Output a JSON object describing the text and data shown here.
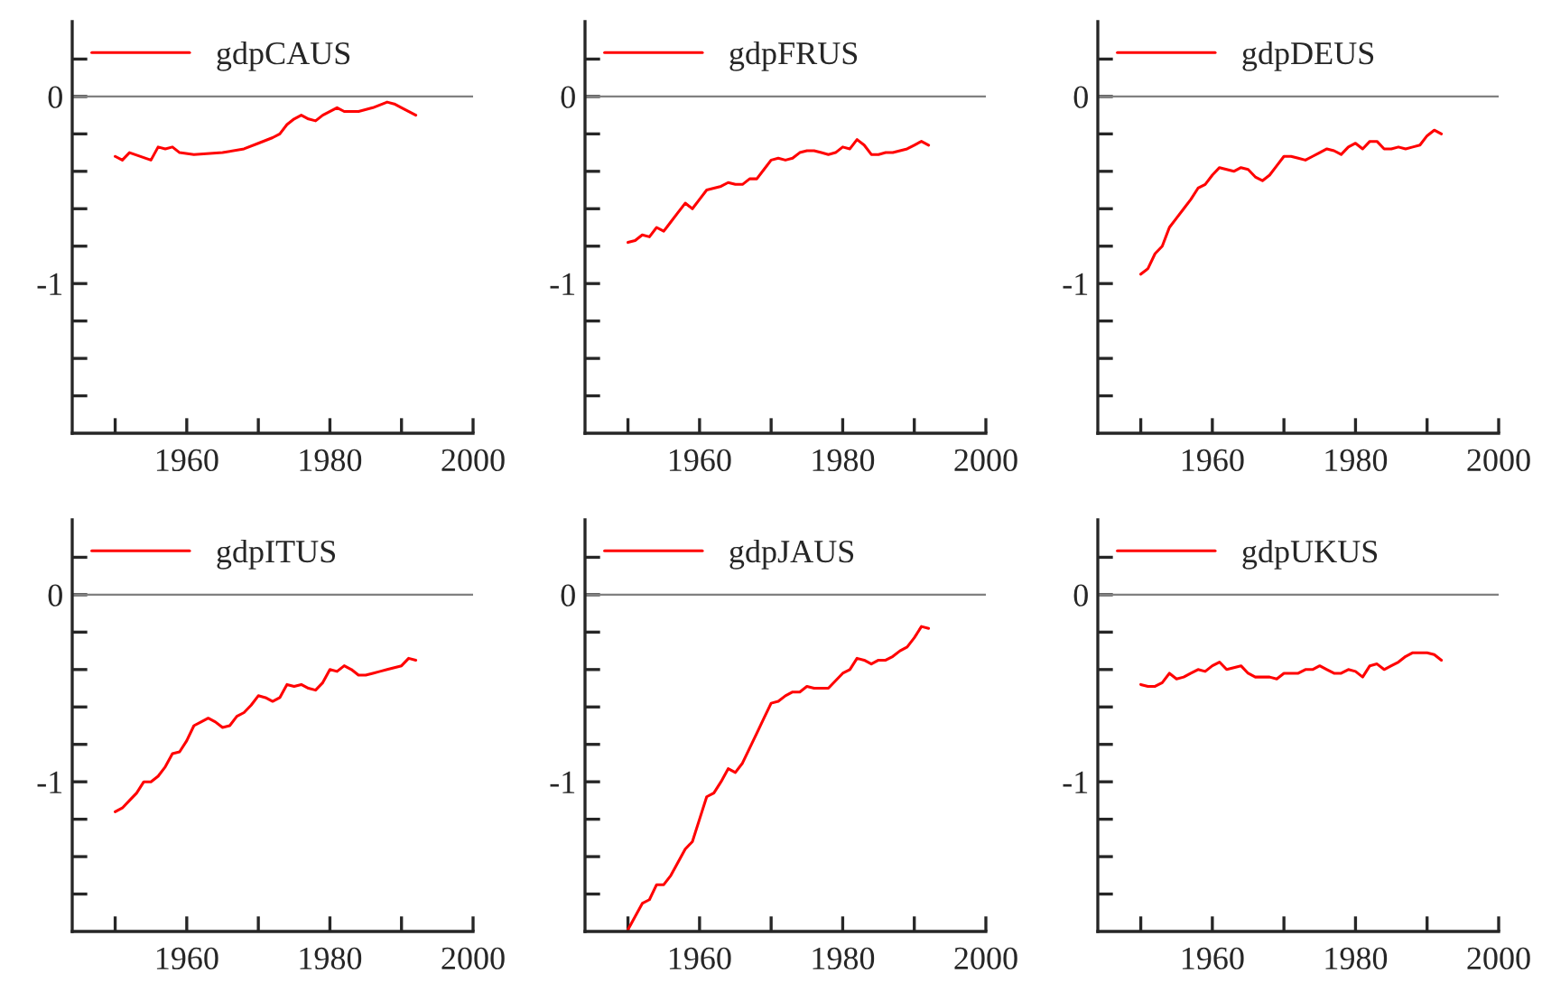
{
  "chart_data": [
    {
      "type": "line",
      "x": [
        1950,
        1951,
        1952,
        1955,
        1956,
        1957,
        1958,
        1959,
        1961,
        1965,
        1968,
        1970,
        1972,
        1973,
        1974,
        1975,
        1976,
        1977,
        1978,
        1979,
        1981,
        1982,
        1984,
        1986,
        1988,
        1989,
        1990,
        1992
      ],
      "series": [
        {
          "name": "gdpCAUS",
          "color": "#ff0000",
          "values": [
            -0.32,
            -0.34,
            -0.3,
            -0.34,
            -0.27,
            -0.28,
            -0.27,
            -0.3,
            -0.31,
            -0.3,
            -0.28,
            -0.25,
            -0.22,
            -0.2,
            -0.15,
            -0.12,
            -0.1,
            -0.12,
            -0.13,
            -0.1,
            -0.06,
            -0.08,
            -0.08,
            -0.06,
            -0.03,
            -0.04,
            -0.06,
            -0.1
          ]
        }
      ],
      "xlim": [
        1944,
        2000
      ],
      "xticks": [
        {
          "value": 1950,
          "label": null
        },
        1960,
        {
          "value": 1970,
          "label": null
        },
        1980,
        {
          "value": 1990,
          "label": null
        },
        2000
      ],
      "ylim": [
        -1.8,
        0.4
      ],
      "yticks": [
        {
          "value": -1.6,
          "label": null
        },
        {
          "value": -1.4,
          "label": null
        },
        {
          "value": -1.2,
          "label": null
        },
        {
          "value": -1,
          "label": "-1"
        },
        {
          "value": -0.8,
          "label": null
        },
        {
          "value": -0.6,
          "label": null
        },
        {
          "value": -0.4,
          "label": null
        },
        {
          "value": -0.2,
          "label": null
        },
        0,
        {
          "value": 0.2,
          "label": null
        }
      ],
      "ref_lines": [
        {
          "axis": "y",
          "value": 0,
          "color": "#808080"
        }
      ],
      "legend": "top left",
      "grid": false
    },
    {
      "type": "line",
      "x": [
        1950,
        1951,
        1952,
        1953,
        1954,
        1955,
        1956,
        1957,
        1958,
        1959,
        1960,
        1961,
        1963,
        1964,
        1965,
        1966,
        1967,
        1968,
        1969,
        1970,
        1971,
        1972,
        1973,
        1974,
        1975,
        1976,
        1977,
        1978,
        1979,
        1980,
        1981,
        1982,
        1983,
        1984,
        1985,
        1986,
        1987,
        1988,
        1989,
        1990,
        1991,
        1992
      ],
      "series": [
        {
          "name": "gdpFRUS",
          "color": "#ff0000",
          "values": [
            -0.78,
            -0.77,
            -0.74,
            -0.75,
            -0.7,
            -0.72,
            -0.67,
            -0.62,
            -0.57,
            -0.6,
            -0.55,
            -0.5,
            -0.48,
            -0.46,
            -0.47,
            -0.47,
            -0.44,
            -0.44,
            -0.39,
            -0.34,
            -0.33,
            -0.34,
            -0.33,
            -0.3,
            -0.29,
            -0.29,
            -0.3,
            -0.31,
            -0.3,
            -0.27,
            -0.28,
            -0.23,
            -0.26,
            -0.31,
            -0.31,
            -0.3,
            -0.3,
            -0.29,
            -0.28,
            -0.26,
            -0.24,
            -0.26
          ]
        }
      ],
      "xlim": [
        1944,
        2000
      ],
      "xticks": [
        {
          "value": 1950,
          "label": null
        },
        1960,
        {
          "value": 1970,
          "label": null
        },
        1980,
        {
          "value": 1990,
          "label": null
        },
        2000
      ],
      "ylim": [
        -1.8,
        0.4
      ],
      "yticks": [
        {
          "value": -1.6,
          "label": null
        },
        {
          "value": -1.4,
          "label": null
        },
        {
          "value": -1.2,
          "label": null
        },
        {
          "value": -1,
          "label": "-1"
        },
        {
          "value": -0.8,
          "label": null
        },
        {
          "value": -0.6,
          "label": null
        },
        {
          "value": -0.4,
          "label": null
        },
        {
          "value": -0.2,
          "label": null
        },
        0,
        {
          "value": 0.2,
          "label": null
        }
      ],
      "ref_lines": [
        {
          "axis": "y",
          "value": 0,
          "color": "#808080"
        }
      ],
      "legend": "top left",
      "grid": false
    },
    {
      "type": "line",
      "x": [
        1950,
        1951,
        1952,
        1953,
        1954,
        1955,
        1956,
        1957,
        1958,
        1959,
        1960,
        1961,
        1962,
        1963,
        1964,
        1965,
        1966,
        1967,
        1968,
        1969,
        1970,
        1971,
        1972,
        1973,
        1974,
        1975,
        1976,
        1977,
        1978,
        1979,
        1980,
        1981,
        1982,
        1983,
        1984,
        1985,
        1986,
        1987,
        1988,
        1989,
        1990,
        1991,
        1992
      ],
      "series": [
        {
          "name": "gdpDEUS",
          "color": "#ff0000",
          "values": [
            -0.95,
            -0.92,
            -0.84,
            -0.8,
            -0.7,
            -0.65,
            -0.6,
            -0.55,
            -0.49,
            -0.47,
            -0.42,
            -0.38,
            -0.39,
            -0.4,
            -0.38,
            -0.39,
            -0.43,
            -0.45,
            -0.42,
            -0.37,
            -0.32,
            -0.32,
            -0.33,
            -0.34,
            -0.32,
            -0.3,
            -0.28,
            -0.29,
            -0.31,
            -0.27,
            -0.25,
            -0.28,
            -0.24,
            -0.24,
            -0.28,
            -0.28,
            -0.27,
            -0.28,
            -0.27,
            -0.26,
            -0.21,
            -0.18,
            -0.2
          ]
        }
      ],
      "xlim": [
        1944,
        2000
      ],
      "xticks": [
        {
          "value": 1950,
          "label": null
        },
        1960,
        {
          "value": 1970,
          "label": null
        },
        1980,
        {
          "value": 1990,
          "label": null
        },
        2000
      ],
      "ylim": [
        -1.8,
        0.4
      ],
      "yticks": [
        {
          "value": -1.6,
          "label": null
        },
        {
          "value": -1.4,
          "label": null
        },
        {
          "value": -1.2,
          "label": null
        },
        {
          "value": -1,
          "label": "-1"
        },
        {
          "value": -0.8,
          "label": null
        },
        {
          "value": -0.6,
          "label": null
        },
        {
          "value": -0.4,
          "label": null
        },
        {
          "value": -0.2,
          "label": null
        },
        0,
        {
          "value": 0.2,
          "label": null
        }
      ],
      "ref_lines": [
        {
          "axis": "y",
          "value": 0,
          "color": "#808080"
        }
      ],
      "legend": "top left",
      "grid": false
    },
    {
      "type": "line",
      "x": [
        1950,
        1951,
        1952,
        1953,
        1954,
        1955,
        1956,
        1957,
        1958,
        1959,
        1960,
        1961,
        1962,
        1963,
        1964,
        1965,
        1966,
        1967,
        1968,
        1969,
        1970,
        1971,
        1972,
        1973,
        1974,
        1975,
        1976,
        1977,
        1978,
        1979,
        1980,
        1981,
        1982,
        1983,
        1984,
        1985,
        1986,
        1987,
        1988,
        1989,
        1990,
        1991,
        1992
      ],
      "series": [
        {
          "name": "gdpITUS",
          "color": "#ff0000",
          "values": [
            -1.16,
            -1.14,
            -1.1,
            -1.06,
            -1.0,
            -1.0,
            -0.97,
            -0.92,
            -0.85,
            -0.84,
            -0.78,
            -0.7,
            -0.68,
            -0.66,
            -0.68,
            -0.71,
            -0.7,
            -0.65,
            -0.63,
            -0.59,
            -0.54,
            -0.55,
            -0.57,
            -0.55,
            -0.48,
            -0.49,
            -0.48,
            -0.5,
            -0.51,
            -0.47,
            -0.4,
            -0.41,
            -0.38,
            -0.4,
            -0.43,
            -0.43,
            -0.42,
            -0.41,
            -0.4,
            -0.39,
            -0.38,
            -0.34,
            -0.35
          ]
        }
      ],
      "xlim": [
        1944,
        2000
      ],
      "xticks": [
        {
          "value": 1950,
          "label": null
        },
        1960,
        {
          "value": 1970,
          "label": null
        },
        1980,
        {
          "value": 1990,
          "label": null
        },
        2000
      ],
      "ylim": [
        -1.8,
        0.4
      ],
      "yticks": [
        {
          "value": -1.6,
          "label": null
        },
        {
          "value": -1.4,
          "label": null
        },
        {
          "value": -1.2,
          "label": null
        },
        {
          "value": -1,
          "label": "-1"
        },
        {
          "value": -0.8,
          "label": null
        },
        {
          "value": -0.6,
          "label": null
        },
        {
          "value": -0.4,
          "label": null
        },
        {
          "value": -0.2,
          "label": null
        },
        0,
        {
          "value": 0.2,
          "label": null
        }
      ],
      "ref_lines": [
        {
          "axis": "y",
          "value": 0,
          "color": "#808080"
        }
      ],
      "legend": "top left",
      "grid": false
    },
    {
      "type": "line",
      "x": [
        1950,
        1951,
        1952,
        1953,
        1954,
        1955,
        1956,
        1957,
        1958,
        1959,
        1960,
        1961,
        1962,
        1963,
        1964,
        1965,
        1966,
        1967,
        1968,
        1969,
        1970,
        1971,
        1972,
        1973,
        1974,
        1975,
        1976,
        1977,
        1978,
        1979,
        1980,
        1981,
        1982,
        1983,
        1984,
        1985,
        1986,
        1987,
        1988,
        1989,
        1990,
        1991,
        1992
      ],
      "series": [
        {
          "name": "gdpJAUS",
          "color": "#ff0000",
          "values": [
            -1.79,
            -1.72,
            -1.65,
            -1.63,
            -1.55,
            -1.55,
            -1.5,
            -1.43,
            -1.36,
            -1.32,
            -1.2,
            -1.08,
            -1.06,
            -1.0,
            -0.93,
            -0.95,
            -0.9,
            -0.82,
            -0.74,
            -0.66,
            -0.58,
            -0.57,
            -0.54,
            -0.52,
            -0.52,
            -0.49,
            -0.5,
            -0.5,
            -0.5,
            -0.46,
            -0.42,
            -0.4,
            -0.34,
            -0.35,
            -0.37,
            -0.35,
            -0.35,
            -0.33,
            -0.3,
            -0.28,
            -0.23,
            -0.17,
            -0.18
          ]
        }
      ],
      "xlim": [
        1944,
        2000
      ],
      "xticks": [
        {
          "value": 1950,
          "label": null
        },
        1960,
        {
          "value": 1970,
          "label": null
        },
        1980,
        {
          "value": 1990,
          "label": null
        },
        2000
      ],
      "ylim": [
        -1.8,
        0.4
      ],
      "yticks": [
        {
          "value": -1.6,
          "label": null
        },
        {
          "value": -1.4,
          "label": null
        },
        {
          "value": -1.2,
          "label": null
        },
        {
          "value": -1,
          "label": "-1"
        },
        {
          "value": -0.8,
          "label": null
        },
        {
          "value": -0.6,
          "label": null
        },
        {
          "value": -0.4,
          "label": null
        },
        {
          "value": -0.2,
          "label": null
        },
        0,
        {
          "value": 0.2,
          "label": null
        }
      ],
      "ref_lines": [
        {
          "axis": "y",
          "value": 0,
          "color": "#808080"
        }
      ],
      "legend": "top left",
      "grid": false
    },
    {
      "type": "line",
      "x": [
        1950,
        1951,
        1952,
        1953,
        1954,
        1955,
        1956,
        1957,
        1958,
        1959,
        1960,
        1961,
        1962,
        1963,
        1964,
        1965,
        1966,
        1967,
        1968,
        1969,
        1970,
        1971,
        1972,
        1973,
        1974,
        1975,
        1976,
        1977,
        1978,
        1979,
        1980,
        1981,
        1982,
        1983,
        1984,
        1985,
        1986,
        1987,
        1988,
        1989,
        1990,
        1991,
        1992
      ],
      "series": [
        {
          "name": "gdpUKUS",
          "color": "#ff0000",
          "values": [
            -0.48,
            -0.49,
            -0.49,
            -0.47,
            -0.42,
            -0.45,
            -0.44,
            -0.42,
            -0.4,
            -0.41,
            -0.38,
            -0.36,
            -0.4,
            -0.39,
            -0.38,
            -0.42,
            -0.44,
            -0.44,
            -0.44,
            -0.45,
            -0.42,
            -0.42,
            -0.42,
            -0.4,
            -0.4,
            -0.38,
            -0.4,
            -0.42,
            -0.42,
            -0.4,
            -0.41,
            -0.44,
            -0.38,
            -0.37,
            -0.4,
            -0.38,
            -0.36,
            -0.33,
            -0.31,
            -0.31,
            -0.31,
            -0.32,
            -0.35
          ]
        }
      ],
      "xlim": [
        1944,
        2000
      ],
      "xticks": [
        {
          "value": 1950,
          "label": null
        },
        1960,
        {
          "value": 1970,
          "label": null
        },
        1980,
        {
          "value": 1990,
          "label": null
        },
        2000
      ],
      "ylim": [
        -1.8,
        0.4
      ],
      "yticks": [
        {
          "value": -1.6,
          "label": null
        },
        {
          "value": -1.4,
          "label": null
        },
        {
          "value": -1.2,
          "label": null
        },
        {
          "value": -1,
          "label": "-1"
        },
        {
          "value": -0.8,
          "label": null
        },
        {
          "value": -0.6,
          "label": null
        },
        {
          "value": -0.4,
          "label": null
        },
        {
          "value": -0.2,
          "label": null
        },
        0,
        {
          "value": 0.2,
          "label": null
        }
      ],
      "ref_lines": [
        {
          "axis": "y",
          "value": 0,
          "color": "#808080"
        }
      ],
      "legend": "top left",
      "grid": false
    }
  ]
}
